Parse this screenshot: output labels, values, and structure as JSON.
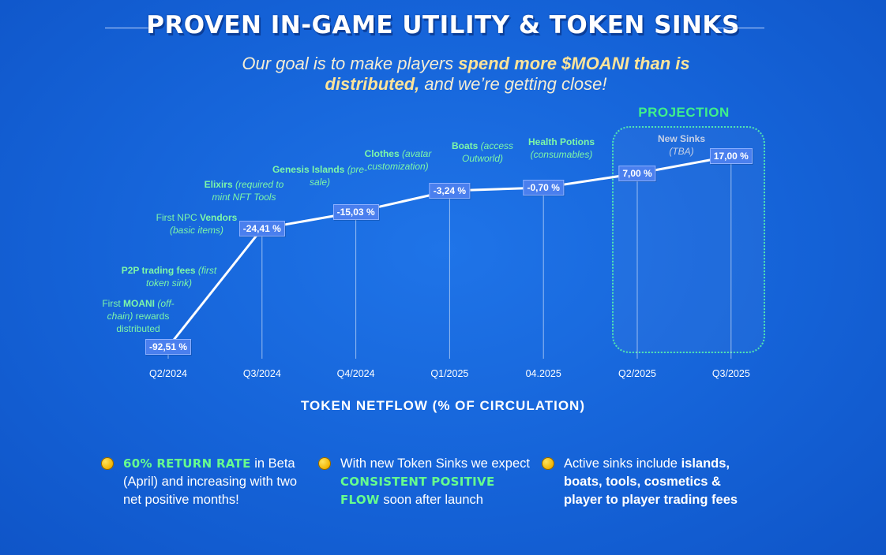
{
  "header": {
    "title": "PROVEN IN-GAME UTILITY & TOKEN SINKS",
    "subtitle_part1": "Our goal is to make players ",
    "subtitle_bold": "spend more $MOANI than is distributed,",
    "subtitle_part2": " and we’re getting close!"
  },
  "projection_label": "PROJECTION",
  "chart_data": {
    "type": "line",
    "xlabel": "TOKEN NETFLOW (% OF CIRCULATION)",
    "categories": [
      "Q2/2024",
      "Q3/2024",
      "Q4/2024",
      "Q1/2025",
      "04.2025",
      "Q2/2025",
      "Q3/2025"
    ],
    "values": [
      -92.51,
      -24.41,
      -15.03,
      -3.24,
      -0.7,
      7.0,
      17.0
    ],
    "value_labels": [
      "-92,51 %",
      "-24,41 %",
      "-15,03 %",
      "-3,24 %",
      "-0,70 %",
      "7,00 %",
      "17,00 %"
    ],
    "projected_categories": [
      "Q2/2025",
      "Q3/2025"
    ],
    "annotations": [
      {
        "category": "Q2/2024",
        "lines": [
          [
            "plain",
            "First "
          ],
          [
            "bold",
            "MOANI"
          ],
          [
            "italic",
            " (off-chain)"
          ],
          [
            "plain",
            " rewards distributed"
          ]
        ]
      },
      {
        "category": "Q2/2024",
        "lines": [
          [
            "bold",
            "P2P trading fees"
          ],
          [
            "italic",
            " (first token sink)"
          ]
        ]
      },
      {
        "category": "Q3/2024",
        "lines": [
          [
            "plain",
            "First NPC "
          ],
          [
            "bold",
            "Vendors"
          ],
          [
            "italic",
            " (basic items)"
          ]
        ]
      },
      {
        "category": "Q3/2024",
        "lines": [
          [
            "bold",
            "Elixirs"
          ],
          [
            "italic",
            " (required to mint NFT Tools"
          ]
        ]
      },
      {
        "category": "Q4/2024",
        "lines": [
          [
            "bold",
            "Genesis Islands"
          ],
          [
            "italic",
            " (pre-sale)"
          ]
        ]
      },
      {
        "category": "Q1/2025",
        "lines": [
          [
            "bold",
            "Clothes"
          ],
          [
            "italic",
            " (avatar customization)"
          ]
        ]
      },
      {
        "category": "Q1/2025",
        "lines": [
          [
            "bold",
            "Boats"
          ],
          [
            "italic",
            " (access Outworld)"
          ]
        ]
      },
      {
        "category": "04.2025",
        "lines": [
          [
            "bold",
            "Health Potions"
          ],
          [
            "italic",
            " (consumables)"
          ]
        ]
      },
      {
        "category": "Q3/2025",
        "lines": [
          [
            "bold",
            "New Sinks"
          ],
          [
            "italic",
            " (TBA)"
          ]
        ]
      }
    ],
    "colors": {
      "line": "#ffffff",
      "label_bg": "#4a7fee",
      "annotation": "#7df7a8",
      "projection": "#3ff08a"
    }
  },
  "bullets": [
    {
      "highlight": "60% RETURN RATE",
      "text": " in Beta (April) and increasing with two net positive months!"
    },
    {
      "pre": "With new Token Sinks we expect ",
      "highlight": "CONSISTENT POSITIVE FLOW",
      "text": " soon after launch"
    },
    {
      "pre": "Active sinks include ",
      "bold": "islands, boats, tools, cosmetics & player to player trading fees"
    }
  ],
  "icons": {
    "bullet": "coin-emoji-icon"
  }
}
